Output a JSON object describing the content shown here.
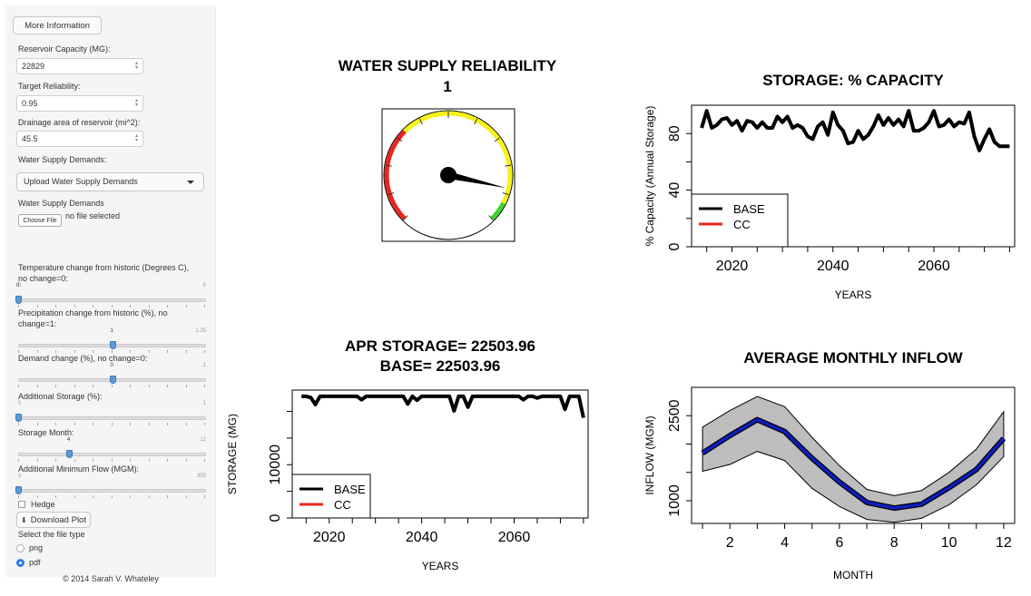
{
  "sidebar": {
    "more_info": "More Information",
    "reservoir_capacity_label": "Reservoir Capacity (MG):",
    "reservoir_capacity_value": "22829",
    "target_reliability_label": "Target Reliability:",
    "target_reliability_value": "0.95",
    "drainage_label": "Drainage area of reservoir (mi^2):",
    "drainage_value": "45.5",
    "wsd_label": "Water Supply Demands:",
    "wsd_select": "Upload Water Supply Demands",
    "wsd_upload_label": "Water Supply Demands",
    "choose_file": "Choose File",
    "no_file": "no file selected",
    "sliders": [
      {
        "label": "Temperature change from historic (Degrees C), no change=0:",
        "min": "0",
        "max": "5",
        "value": "0",
        "frac": 0.0
      },
      {
        "label": "Precipitation change from historic (%), no change=1:",
        "min": "",
        "max": "1.25",
        "value": "1",
        "frac": 0.5
      },
      {
        "label": "Demand change (%), no change=0:",
        "min": "",
        "max": "1",
        "value": "0",
        "frac": 0.5
      },
      {
        "label": "Additional Storage (%):",
        "min": "0",
        "max": "1",
        "value": "",
        "frac": 0.0
      },
      {
        "label": "Storage Month:",
        "min": "",
        "max": "12",
        "value": "4",
        "frac": 0.27
      },
      {
        "label": "Additional Minimum Flow (MGM):",
        "min": "0",
        "max": "300",
        "value": "",
        "frac": 0.0
      }
    ],
    "hedge_label": "Hedge",
    "download_label": "Download Plot",
    "file_type_label": "Select the file type",
    "file_types": [
      "png",
      "pdf"
    ],
    "file_type_selected": "pdf",
    "copyright": "© 2014 Sarah V. Whateley"
  },
  "gauge": {
    "title": "WATER SUPPLY RELIABILITY",
    "value_text": "1",
    "needle_fraction": 0.88,
    "colors": {
      "red": "#e8261f",
      "yellow": "#f6f21a",
      "green": "#3fd42a"
    }
  },
  "chart_data": [
    {
      "type": "line",
      "title": "STORAGE: % CAPACITY",
      "xlabel": "YEARS",
      "ylabel": "% Capacity (Annual Storage)",
      "xlim": [
        2012,
        2076
      ],
      "ylim": [
        0,
        100
      ],
      "xticks": [
        "2020",
        "2040",
        "2060"
      ],
      "yticks": [
        "0",
        "40",
        "80"
      ],
      "legend": {
        "position": "bottom-left",
        "items": [
          "BASE",
          "CC"
        ],
        "colors": [
          "#000000",
          "#e8261f"
        ]
      },
      "series": [
        {
          "name": "BASE",
          "color": "#000000",
          "x": [
            2014,
            2015,
            2016,
            2017,
            2018,
            2019,
            2020,
            2021,
            2022,
            2023,
            2024,
            2025,
            2026,
            2027,
            2028,
            2029,
            2030,
            2031,
            2032,
            2033,
            2034,
            2035,
            2036,
            2037,
            2038,
            2039,
            2040,
            2041,
            2042,
            2043,
            2044,
            2045,
            2046,
            2047,
            2048,
            2049,
            2050,
            2051,
            2052,
            2053,
            2054,
            2055,
            2056,
            2057,
            2058,
            2059,
            2060,
            2061,
            2062,
            2063,
            2064,
            2065,
            2066,
            2067,
            2068,
            2069,
            2070,
            2071,
            2072,
            2073,
            2074,
            2075
          ],
          "y": [
            84,
            96,
            84,
            86,
            90,
            91,
            86,
            89,
            82,
            89,
            88,
            84,
            88,
            84,
            84,
            92,
            88,
            92,
            84,
            86,
            84,
            78,
            76,
            85,
            88,
            79,
            95,
            86,
            82,
            73,
            74,
            82,
            76,
            79,
            85,
            93,
            86,
            91,
            86,
            90,
            85,
            96,
            82,
            82,
            84,
            88,
            96,
            85,
            86,
            90,
            85,
            88,
            87,
            95,
            78,
            68,
            76,
            83,
            74,
            71,
            71,
            71
          ]
        },
        {
          "name": "CC",
          "color": "#e8261f",
          "x": [],
          "y": []
        }
      ]
    },
    {
      "type": "line",
      "title": "APR STORAGE= 22503.96",
      "subtitle": "BASE= 22503.96",
      "xlabel": "YEARS",
      "ylabel": "STORAGE (MG)",
      "xlim": [
        2012,
        2076
      ],
      "ylim": [
        0,
        24000
      ],
      "xticks": [
        "2020",
        "2040",
        "2060"
      ],
      "yticks": [
        "0",
        "10000"
      ],
      "legend": {
        "position": "bottom-left",
        "items": [
          "BASE",
          "CC"
        ],
        "colors": [
          "#000000",
          "#e8261f"
        ]
      },
      "series": [
        {
          "name": "BASE",
          "color": "#000000",
          "x": [
            2014,
            2015,
            2016,
            2017,
            2018,
            2019,
            2020,
            2021,
            2022,
            2023,
            2024,
            2025,
            2026,
            2027,
            2028,
            2029,
            2030,
            2031,
            2032,
            2033,
            2034,
            2035,
            2036,
            2037,
            2038,
            2039,
            2040,
            2041,
            2042,
            2043,
            2044,
            2045,
            2046,
            2047,
            2048,
            2049,
            2050,
            2051,
            2052,
            2053,
            2054,
            2055,
            2056,
            2057,
            2058,
            2059,
            2060,
            2061,
            2062,
            2063,
            2064,
            2065,
            2066,
            2067,
            2068,
            2069,
            2070,
            2071,
            2072,
            2073,
            2074,
            2075
          ],
          "y": [
            22829,
            22829,
            22600,
            21300,
            22829,
            22829,
            22829,
            22829,
            22829,
            22829,
            22829,
            22829,
            22829,
            22200,
            22829,
            22829,
            22829,
            22829,
            22829,
            22829,
            22829,
            22829,
            22829,
            21400,
            22829,
            22100,
            22829,
            22829,
            22829,
            22829,
            22829,
            22829,
            22829,
            20100,
            22829,
            22829,
            20800,
            22829,
            22829,
            22829,
            22829,
            22829,
            22829,
            22829,
            22829,
            22829,
            22829,
            22829,
            22200,
            22829,
            22829,
            22500,
            22829,
            22829,
            22829,
            22829,
            22829,
            20400,
            22829,
            22829,
            22829,
            18800
          ]
        },
        {
          "name": "CC",
          "color": "#e8261f",
          "x": [],
          "y": []
        }
      ]
    },
    {
      "type": "area",
      "title": "AVERAGE MONTHLY INFLOW",
      "xlabel": "MONTH",
      "ylabel": "INFLOW (MGM)",
      "xlim": [
        0.6,
        12.4
      ],
      "ylim": [
        600,
        3000
      ],
      "xticks": [
        "2",
        "4",
        "6",
        "8",
        "10",
        "12"
      ],
      "yticks": [
        "1000",
        "2500"
      ],
      "months": [
        1,
        2,
        3,
        4,
        5,
        6,
        7,
        8,
        9,
        10,
        11,
        12
      ],
      "mean": [
        1840,
        2150,
        2430,
        2220,
        1750,
        1330,
        970,
        870,
        940,
        1230,
        1550,
        2100
      ],
      "upper": [
        2300,
        2590,
        2840,
        2660,
        2120,
        1620,
        1200,
        1090,
        1180,
        1500,
        1910,
        2570
      ],
      "lower": [
        1520,
        1640,
        1870,
        1710,
        1220,
        900,
        670,
        620,
        690,
        930,
        1280,
        1780
      ],
      "band_color": "#bdbdbd",
      "line_color": "#0d1fbf"
    }
  ]
}
